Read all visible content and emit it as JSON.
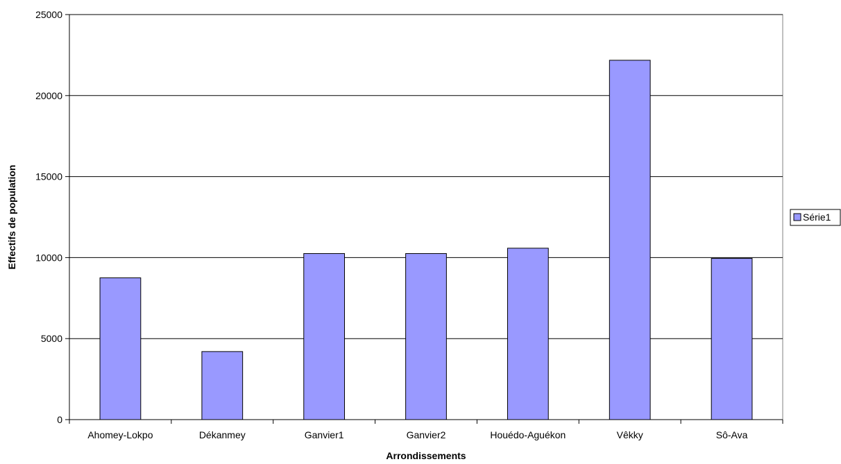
{
  "chart_data": {
    "type": "bar",
    "title": "",
    "xlabel": "Arrondissements",
    "ylabel": "Effectifs de population",
    "categories": [
      "Ahomey-Lokpo",
      "Dékanmey",
      "Ganvier1",
      "Ganvier2",
      "Houédo-Aguékon",
      "Vêkky",
      "Sô-Ava"
    ],
    "series": [
      {
        "name": "Série1",
        "values": [
          8750,
          4200,
          10250,
          10250,
          10580,
          22180,
          9950
        ]
      }
    ],
    "ylim": [
      0,
      25000
    ],
    "yticks": [
      0,
      5000,
      10000,
      15000,
      20000,
      25000
    ],
    "ytick_labels": [
      "0",
      "5000",
      "10000",
      "15000",
      "20000",
      "25000"
    ],
    "grid": "horizontal major gridlines",
    "legend_position": "right",
    "colors": {
      "bar_fill": "#9999ff",
      "bar_stroke": "#000000",
      "gridline": "#000000",
      "axis": "#000000",
      "plot_border": "#808080"
    }
  }
}
